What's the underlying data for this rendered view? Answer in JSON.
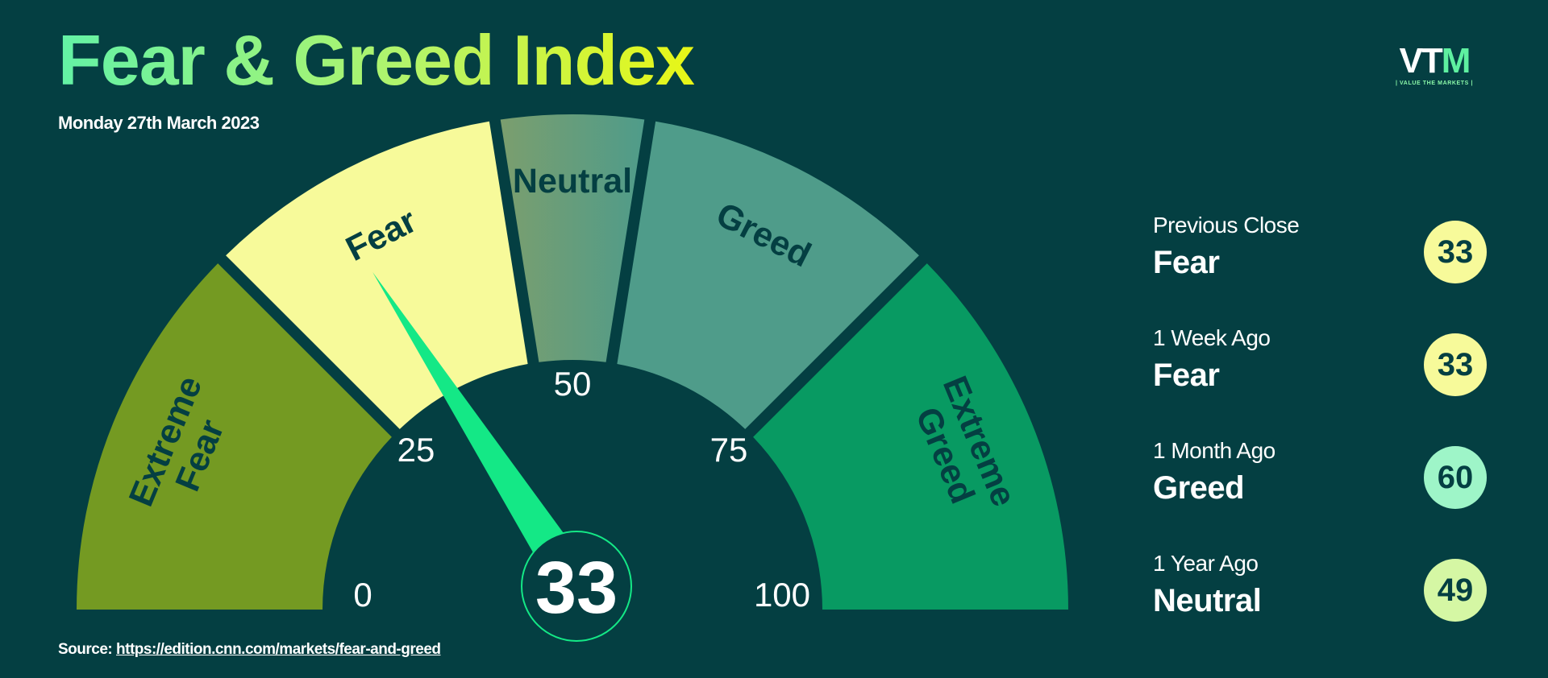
{
  "header": {
    "title": "Fear & Greed Index",
    "date": "Monday 27th March 2023"
  },
  "logo": {
    "text_main": "VT",
    "text_accent": "M",
    "tagline": "| VALUE THE MARKETS |"
  },
  "source": {
    "label": "Source:",
    "url": "https://edition.cnn.com/markets/fear-and-greed"
  },
  "chart_data": {
    "type": "gauge",
    "value": 33,
    "range": [
      0,
      100
    ],
    "ticks": [
      "0",
      "25",
      "50",
      "75",
      "100"
    ],
    "segments": [
      {
        "label_lines": [
          "Extreme",
          "Fear"
        ],
        "from": 0,
        "to": 25,
        "color": "#749a22"
      },
      {
        "label_lines": [
          "Fear"
        ],
        "from": 25,
        "to": 45,
        "color": "#f7fa9a"
      },
      {
        "label_lines": [
          "Neutral"
        ],
        "from": 45,
        "to": 55,
        "color": "#64a080"
      },
      {
        "label_lines": [
          "Greed"
        ],
        "from": 55,
        "to": 75,
        "color": "#4f9c8a"
      },
      {
        "label_lines": [
          "Extreme",
          "Greed"
        ],
        "from": 75,
        "to": 100,
        "color": "#089a62"
      }
    ],
    "needle_color": "#14e886"
  },
  "history": [
    {
      "period": "Previous Close",
      "rating": "Fear",
      "value": "33",
      "color": "#f7fa9a"
    },
    {
      "period": "1 Week Ago",
      "rating": "Fear",
      "value": "33",
      "color": "#f7fa9a"
    },
    {
      "period": "1 Month Ago",
      "rating": "Greed",
      "value": "60",
      "color": "#9ef5c8"
    },
    {
      "period": "1 Year Ago",
      "rating": "Neutral",
      "value": "49",
      "color": "#d5f7a4"
    }
  ]
}
